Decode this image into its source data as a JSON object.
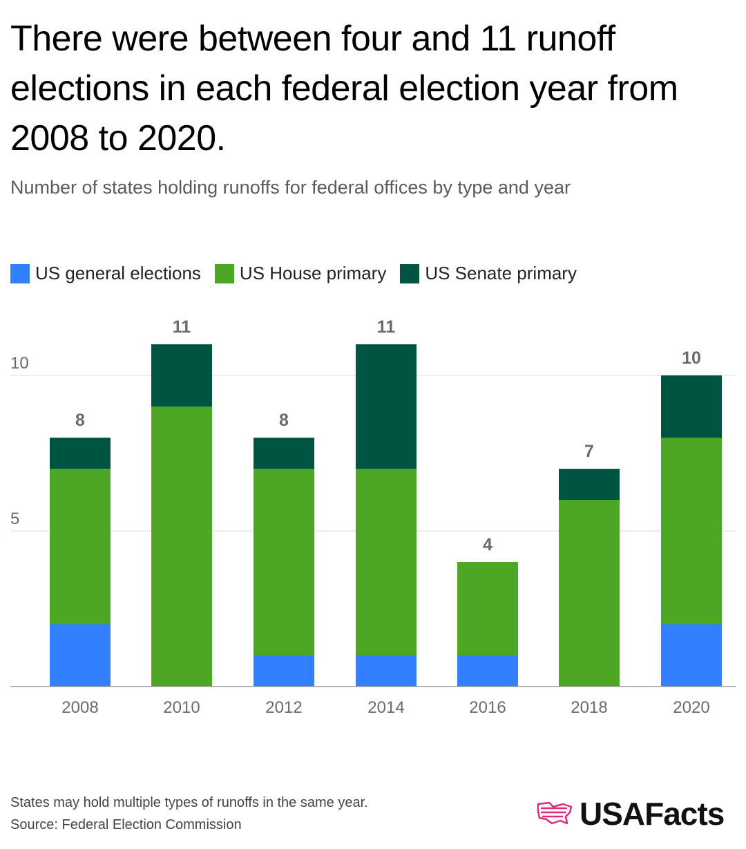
{
  "title": "There were between four and 11 runoff elections in each federal election year from 2008 to 2020.",
  "subtitle": "Number of states holding runoffs for federal offices by type and year",
  "footnote": "States may hold multiple types of runoffs in the same year.",
  "source": "Source: Federal Election Commission",
  "logo": {
    "text": "USAFacts",
    "icon": "usa-map-flag-icon"
  },
  "colors": {
    "general": "#3380ff",
    "house": "#4ea625",
    "senate": "#005542",
    "gridline": "#dddddd",
    "axis": "#999999"
  },
  "chart_data": {
    "type": "bar",
    "stacked": true,
    "categories": [
      "2008",
      "2010",
      "2012",
      "2014",
      "2016",
      "2018",
      "2020"
    ],
    "series": [
      {
        "name": "US general elections",
        "color": "#3380ff",
        "values": [
          2,
          0,
          1,
          1,
          1,
          0,
          2
        ]
      },
      {
        "name": "US House primary",
        "color": "#4ea625",
        "values": [
          5,
          9,
          6,
          6,
          3,
          6,
          6
        ]
      },
      {
        "name": "US Senate primary",
        "color": "#005542",
        "values": [
          1,
          2,
          1,
          4,
          0,
          1,
          2
        ]
      }
    ],
    "totals": [
      8,
      11,
      8,
      11,
      4,
      7,
      10
    ],
    "y_ticks": [
      5,
      10
    ],
    "ylim": [
      0,
      11
    ],
    "legend_position": "top-left",
    "grid": true,
    "xlabel": "",
    "ylabel": ""
  }
}
